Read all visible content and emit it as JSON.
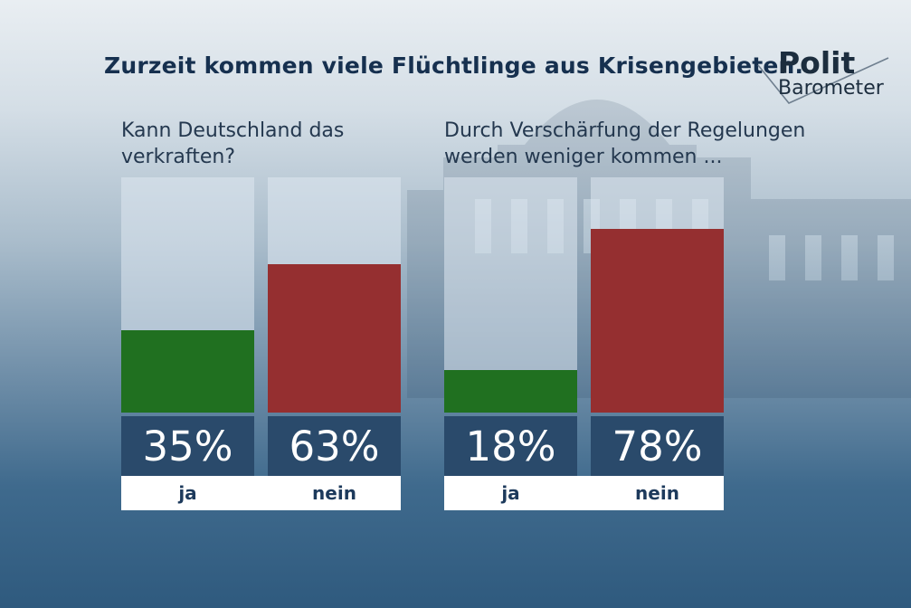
{
  "headline": "Zurzeit kommen viele Flüchtlinge aus Krisengebieten.",
  "logo": {
    "line1": "Polit",
    "line2": "Barometer"
  },
  "colors": {
    "ja": "#207020",
    "nein": "#952f30",
    "value_box": "#2a4a6b",
    "label_strip": "#ffffff"
  },
  "chart_data": [
    {
      "type": "bar",
      "title": "Kann Deutschland das verkraften?",
      "categories": [
        "ja",
        "nein"
      ],
      "values": [
        35,
        63
      ],
      "value_labels": [
        "35%",
        "63%"
      ],
      "ylim": [
        0,
        100
      ],
      "colors": [
        "#207020",
        "#952f30"
      ]
    },
    {
      "type": "bar",
      "title": "Durch Verschärfung der Regelungen werden weniger kommen ...",
      "categories": [
        "ja",
        "nein"
      ],
      "values": [
        18,
        78
      ],
      "value_labels": [
        "18%",
        "78%"
      ],
      "ylim": [
        0,
        100
      ],
      "colors": [
        "#207020",
        "#952f30"
      ]
    }
  ]
}
